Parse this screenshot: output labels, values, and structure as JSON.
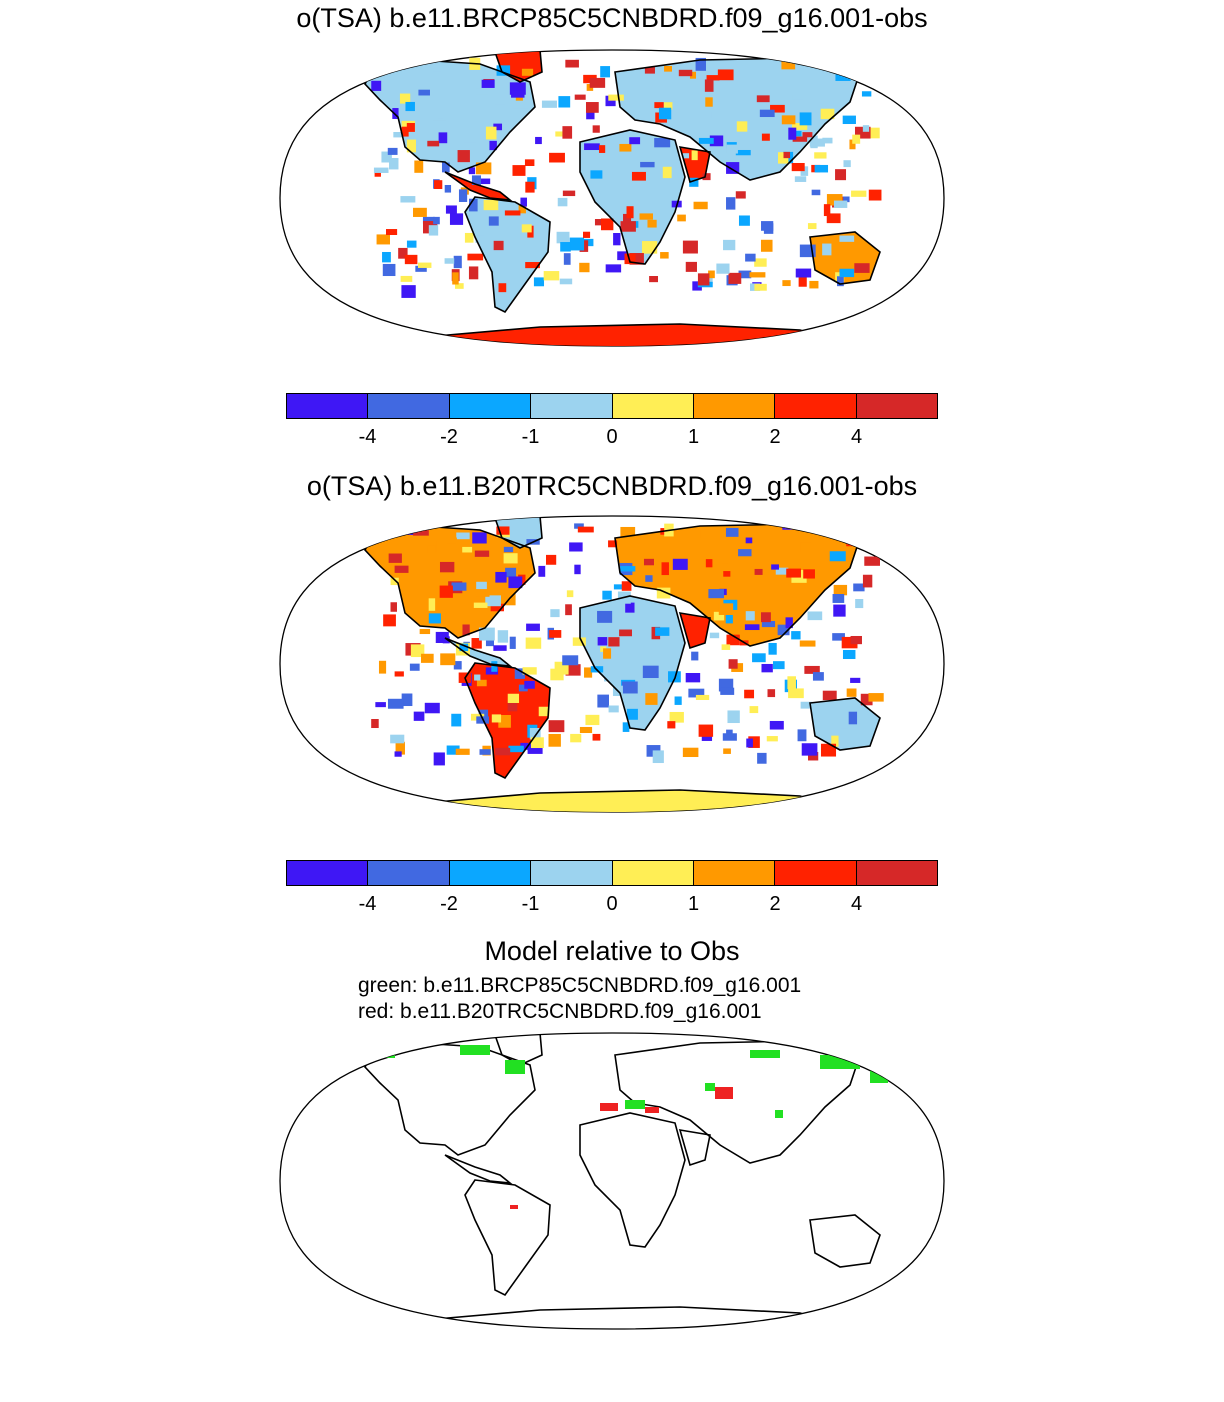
{
  "panels": [
    {
      "title": "o(TSA) b.e11.BRCP85C5CNBDRD.f09_g16.001-obs"
    },
    {
      "title": "o(TSA) b.e11.B20TRC5CNBDRD.f09_g16.001-obs"
    },
    {
      "title": "Model relative to Obs",
      "legend_lines": [
        "green: b.e11.BRCP85C5CNBDRD.f09_g16.001",
        "red: b.e11.B20TRC5CNBDRD.f09_g16.001"
      ]
    }
  ],
  "colorbar": {
    "colors": [
      "#3f17f5",
      "#4169e1",
      "#0ba7ff",
      "#9cd3ef",
      "#ffee55",
      "#ff9900",
      "#ff2200",
      "#d62828"
    ],
    "tick_labels": [
      "-4",
      "-2",
      "-1",
      "0",
      "1",
      "2",
      "4"
    ]
  },
  "comparison_colors": {
    "green": "#22e022",
    "red": "#ee2222"
  }
}
